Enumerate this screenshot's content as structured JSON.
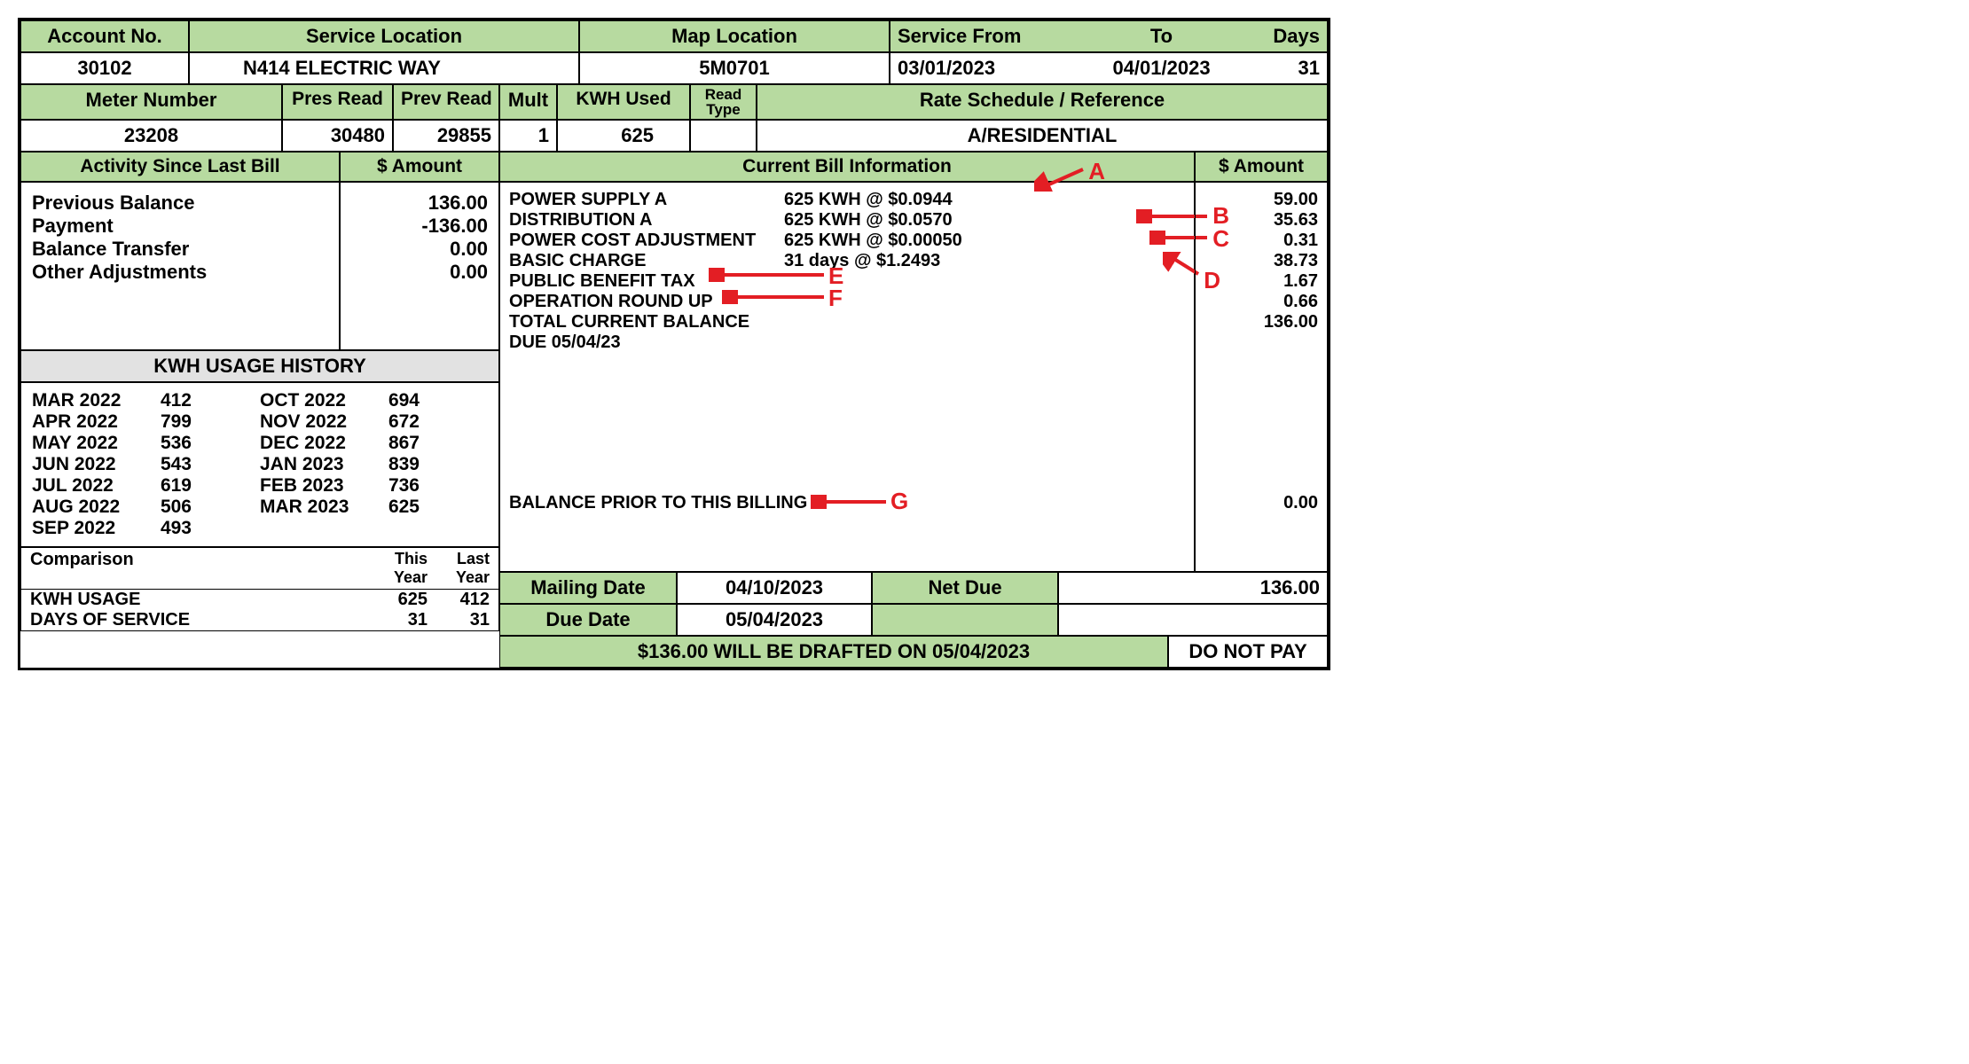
{
  "colors": {
    "header_bg": "#b7daa0",
    "border": "#000000",
    "annotation": "#e31e24",
    "history_bg": "#e2e2e2"
  },
  "header1": {
    "account_no_label": "Account No.",
    "service_location_label": "Service Location",
    "map_location_label": "Map Location",
    "service_from_label": "Service From",
    "to_label": "To",
    "days_label": "Days",
    "account_no": "30102",
    "service_location": "N414 ELECTRIC WAY",
    "map_location": "5M0701",
    "service_from": "03/01/2023",
    "service_to": "04/01/2023",
    "days": "31"
  },
  "header2": {
    "meter_number_label": "Meter Number",
    "pres_read_label": "Pres Read",
    "prev_read_label": "Prev Read",
    "mult_label": "Mult",
    "kwh_used_label": "KWH Used",
    "read_type_label": "Read\nType",
    "rate_schedule_label": "Rate Schedule / Reference",
    "meter_number": "23208",
    "pres_read": "30480",
    "prev_read": "29855",
    "mult": "1",
    "kwh_used": "625",
    "read_type": "",
    "rate_schedule": "A/RESIDENTIAL"
  },
  "activity": {
    "header_label": "Activity Since Last Bill",
    "amount_label": "$ Amount",
    "lines": [
      {
        "label": "Previous Balance",
        "amount": "136.00"
      },
      {
        "label": "Payment",
        "amount": "-136.00"
      },
      {
        "label": "Balance Transfer",
        "amount": "0.00"
      },
      {
        "label": "Other Adjustments",
        "amount": "0.00"
      }
    ]
  },
  "history": {
    "header": "KWH USAGE HISTORY",
    "col1": [
      {
        "month": "MAR 2022",
        "kwh": "412"
      },
      {
        "month": "APR 2022",
        "kwh": "799"
      },
      {
        "month": "MAY 2022",
        "kwh": "536"
      },
      {
        "month": "JUN 2022",
        "kwh": "543"
      },
      {
        "month": "JUL 2022",
        "kwh": "619"
      },
      {
        "month": "AUG 2022",
        "kwh": "506"
      },
      {
        "month": "SEP 2022",
        "kwh": "493"
      }
    ],
    "col2": [
      {
        "month": "OCT 2022",
        "kwh": "694"
      },
      {
        "month": "NOV 2022",
        "kwh": "672"
      },
      {
        "month": "DEC 2022",
        "kwh": "867"
      },
      {
        "month": "JAN 2023",
        "kwh": "839"
      },
      {
        "month": "FEB 2023",
        "kwh": "736"
      },
      {
        "month": "MAR 2023",
        "kwh": "625"
      }
    ]
  },
  "comparison": {
    "label": "Comparison",
    "this_year_label": "This\nYear",
    "last_year_label": "Last\nYear",
    "rows": [
      {
        "label": "KWH USAGE",
        "this_year": "625",
        "last_year": "412"
      },
      {
        "label": "DAYS OF SERVICE",
        "this_year": "31",
        "last_year": "31"
      }
    ]
  },
  "current": {
    "header_label": "Current Bill Information",
    "amount_label": "$ Amount",
    "lines": [
      {
        "desc": "POWER SUPPLY A",
        "rate": "625 KWH @ $0.0944",
        "amount": "59.00"
      },
      {
        "desc": "DISTRIBUTION A",
        "rate": "625 KWH @ $0.0570",
        "amount": "35.63"
      },
      {
        "desc": "POWER COST ADJUSTMENT",
        "rate": "625 KWH @ $0.00050",
        "amount": "0.31"
      },
      {
        "desc": "BASIC CHARGE",
        "rate": "31 days @ $1.2493",
        "amount": "38.73"
      },
      {
        "desc": "PUBLIC BENEFIT TAX",
        "rate": "",
        "amount": "1.67"
      },
      {
        "desc": "OPERATION ROUND UP",
        "rate": "",
        "amount": "0.66"
      },
      {
        "desc": "TOTAL CURRENT BALANCE DUE 05/04/23",
        "rate": "",
        "amount": "136.00"
      }
    ],
    "balance_prior_label": "BALANCE PRIOR TO THIS BILLING",
    "balance_prior_amount": "0.00"
  },
  "footer": {
    "mailing_date_label": "Mailing Date",
    "mailing_date": "04/10/2023",
    "net_due_label": "Net Due",
    "net_due": "136.00",
    "due_date_label": "Due Date",
    "due_date": "05/04/2023",
    "draft_message": "$136.00 WILL BE DRAFTED ON 05/04/2023",
    "do_not_pay": "DO NOT PAY"
  },
  "annotations": {
    "A": "A",
    "B": "B",
    "C": "C",
    "D": "D",
    "E": "E",
    "F": "F",
    "G": "G"
  }
}
